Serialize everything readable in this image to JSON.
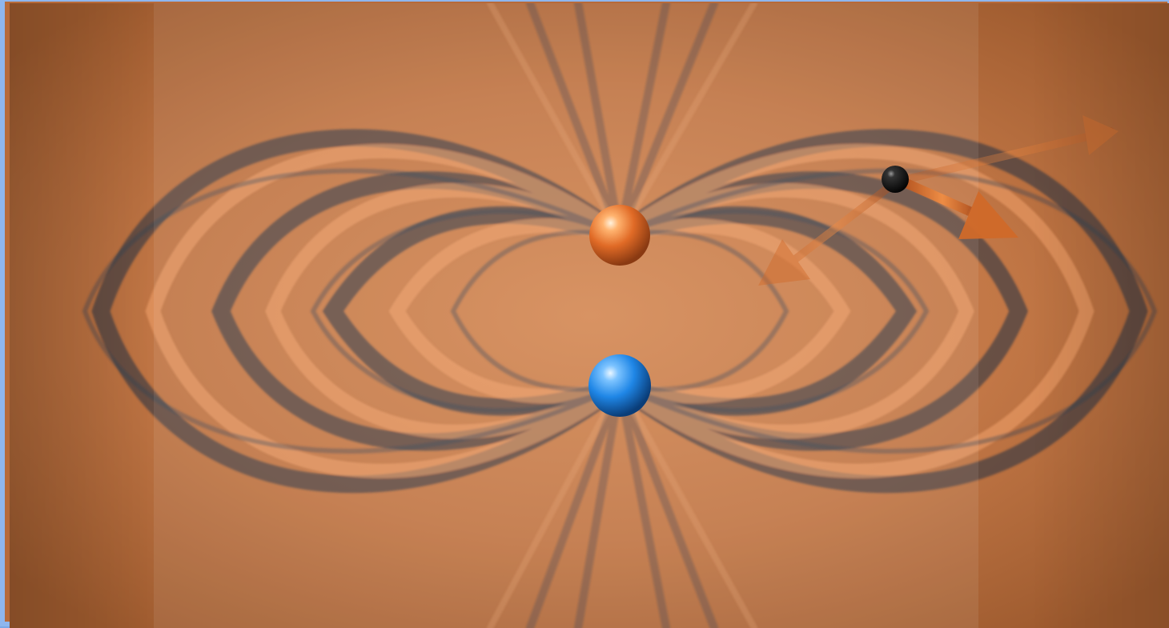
{
  "scene": {
    "description_text": "",
    "colors": {
      "field_orange": "#c97a46",
      "field_dark": "#203448",
      "positive_charge": "#e06a26",
      "negative_charge": "#1f86e6",
      "test_charge": "#111111",
      "arrow": "#d06a2a"
    },
    "objects": {
      "positive_charge_icon": "orange-sphere",
      "negative_charge_icon": "blue-sphere",
      "test_charge_icon": "black-sphere",
      "force_arrows": [
        "arrow-to-upper-right",
        "arrow-to-lower-right",
        "arrow-to-lower-left"
      ]
    }
  }
}
